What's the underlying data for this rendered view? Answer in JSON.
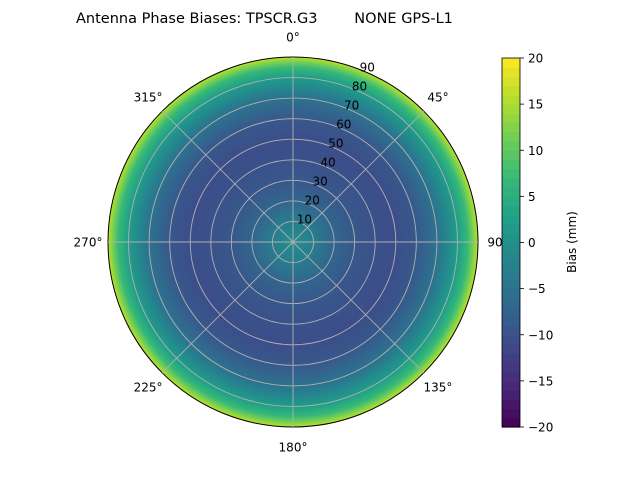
{
  "chart_data": {
    "type": "heatmap",
    "projection": "polar",
    "title": "Antenna Phase Biases: TPSCR.G3        NONE GPS-L1",
    "angular_tick_labels": [
      "0°",
      "45°",
      "90°",
      "135°",
      "180°",
      "225°",
      "270°",
      "315°"
    ],
    "radial_tick_labels": [
      "10",
      "20",
      "30",
      "40",
      "50",
      "60",
      "70",
      "80",
      "90"
    ],
    "radial_range": [
      0,
      90
    ],
    "theta_direction": "clockwise",
    "theta_zero": "north",
    "grid": true,
    "radial_profile": {
      "zenith_deg": [
        0,
        10,
        20,
        30,
        40,
        50,
        60,
        70,
        80,
        85,
        90
      ],
      "bias_mm": [
        0,
        -3,
        -7,
        -9,
        -10,
        -10.5,
        -9,
        -5,
        2,
        7,
        16
      ]
    },
    "colorbar": {
      "label": "Bias (mm)",
      "colormap": "viridis",
      "range": [
        -20,
        20
      ],
      "tick_labels": [
        "20",
        "15",
        "10",
        "5",
        "0",
        "−5",
        "−10",
        "−15",
        "−20"
      ],
      "tick_values": [
        20,
        15,
        10,
        5,
        0,
        -5,
        -10,
        -15,
        -20
      ]
    }
  }
}
